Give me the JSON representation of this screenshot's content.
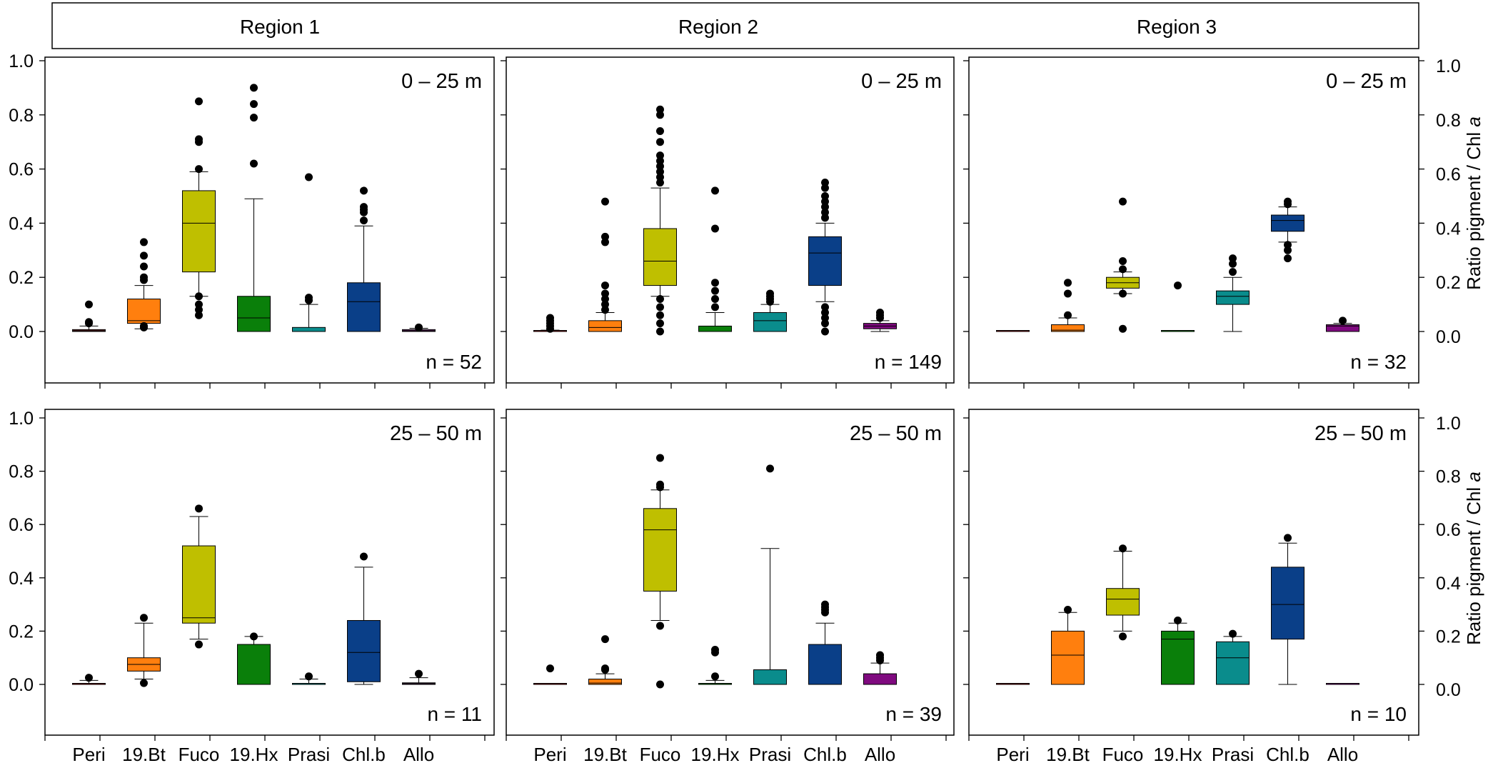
{
  "colors": {
    "Peri": "#8b0f0f",
    "19.Bt": "#ff7f0e",
    "Fuco": "#bfbf00",
    "19.Hx": "#0a7f0a",
    "Prasi": "#0a8c8c",
    "Chl.b": "#0a3f88",
    "Allo": "#7f0a7f",
    "outlier": "#000000"
  },
  "chart_data": {
    "type": "box",
    "title": "",
    "regions": [
      "Region 1",
      "Region 2",
      "Region 3"
    ],
    "depths": [
      "0 – 25 m",
      "25 – 50 m"
    ],
    "categories": [
      "Peri",
      "19.Bt",
      "Fuco",
      "19.Hx",
      "Prasi",
      "Chl.b",
      "Allo"
    ],
    "y_ticks": [
      "0.0",
      "0.2",
      "0.4",
      "0.6",
      "0.8",
      "1.0"
    ],
    "ylim": [
      -0.15,
      1.0
    ],
    "right_ylabel_prefix": "Ratio pigment / Chl ",
    "right_ylabel_italic": "a",
    "panels": [
      {
        "region": "Region 1",
        "depth": "0 – 25 m",
        "n_label": "n = 52",
        "boxes": [
          {
            "cat": "Peri",
            "min": 0.0,
            "q1": 0.0,
            "median": 0.003,
            "q3": 0.007,
            "max": 0.02,
            "outliers": [
              0.03,
              0.035,
              0.1
            ]
          },
          {
            "cat": "19.Bt",
            "min": 0.01,
            "q1": 0.03,
            "median": 0.04,
            "q3": 0.12,
            "max": 0.17,
            "outliers": [
              0.015,
              0.02,
              0.19,
              0.2,
              0.24,
              0.28,
              0.33
            ]
          },
          {
            "cat": "Fuco",
            "min": 0.13,
            "q1": 0.22,
            "median": 0.4,
            "q3": 0.52,
            "max": 0.59,
            "outliers": [
              0.06,
              0.08,
              0.1,
              0.13,
              0.6,
              0.7,
              0.71,
              0.85
            ]
          },
          {
            "cat": "19.Hx",
            "min": 0.0,
            "q1": 0.0,
            "median": 0.05,
            "q3": 0.13,
            "max": 0.49,
            "outliers": [
              0.62,
              0.79,
              0.84,
              0.9
            ]
          },
          {
            "cat": "Prasi",
            "min": 0.0,
            "q1": 0.0,
            "median": 0.0,
            "q3": 0.015,
            "max": 0.1,
            "outliers": [
              0.115,
              0.125,
              0.57
            ]
          },
          {
            "cat": "Chl.b",
            "min": 0.0,
            "q1": 0.0,
            "median": 0.11,
            "q3": 0.18,
            "max": 0.39,
            "outliers": [
              0.41,
              0.44,
              0.45,
              0.46,
              0.52
            ]
          },
          {
            "cat": "Allo",
            "min": 0.0,
            "q1": 0.0,
            "median": 0.003,
            "q3": 0.007,
            "max": 0.012,
            "outliers": [
              0.015
            ]
          }
        ]
      },
      {
        "region": "Region 2",
        "depth": "0 – 25 m",
        "n_label": "n = 149",
        "boxes": [
          {
            "cat": "Peri",
            "min": 0.0,
            "q1": 0.0,
            "median": 0.0,
            "q3": 0.0,
            "max": 0.005,
            "outliers": [
              0.01,
              0.02,
              0.03,
              0.04,
              0.05
            ]
          },
          {
            "cat": "19.Bt",
            "min": 0.0,
            "q1": 0.0,
            "median": 0.015,
            "q3": 0.04,
            "max": 0.07,
            "outliers": [
              0.08,
              0.1,
              0.12,
              0.14,
              0.17,
              0.33,
              0.35,
              0.48
            ]
          },
          {
            "cat": "Fuco",
            "min": 0.13,
            "q1": 0.17,
            "median": 0.26,
            "q3": 0.38,
            "max": 0.53,
            "outliers": [
              0.0,
              0.03,
              0.06,
              0.09,
              0.12,
              0.55,
              0.57,
              0.59,
              0.61,
              0.63,
              0.65,
              0.7,
              0.74,
              0.8,
              0.82
            ]
          },
          {
            "cat": "19.Hx",
            "min": 0.0,
            "q1": 0.0,
            "median": 0.0,
            "q3": 0.02,
            "max": 0.07,
            "outliers": [
              0.09,
              0.12,
              0.15,
              0.18,
              0.38,
              0.52
            ]
          },
          {
            "cat": "Prasi",
            "min": 0.0,
            "q1": 0.0,
            "median": 0.04,
            "q3": 0.07,
            "max": 0.1,
            "outliers": [
              0.11,
              0.12,
              0.13,
              0.14
            ]
          },
          {
            "cat": "Chl.b",
            "min": 0.11,
            "q1": 0.17,
            "median": 0.29,
            "q3": 0.35,
            "max": 0.4,
            "outliers": [
              0.0,
              0.03,
              0.05,
              0.07,
              0.09,
              0.42,
              0.44,
              0.46,
              0.48,
              0.5,
              0.53,
              0.55
            ]
          },
          {
            "cat": "Allo",
            "min": 0.0,
            "q1": 0.01,
            "median": 0.02,
            "q3": 0.03,
            "max": 0.04,
            "outliers": [
              0.05,
              0.06,
              0.07
            ]
          }
        ]
      },
      {
        "region": "Region 3",
        "depth": "0 – 25 m",
        "n_label": "n = 32",
        "boxes": [
          {
            "cat": "Peri",
            "min": 0.0,
            "q1": 0.0,
            "median": 0.0,
            "q3": 0.0,
            "max": 0.0,
            "outliers": []
          },
          {
            "cat": "19.Bt",
            "min": 0.0,
            "q1": 0.0,
            "median": 0.005,
            "q3": 0.025,
            "max": 0.05,
            "outliers": [
              0.06,
              0.14,
              0.18
            ]
          },
          {
            "cat": "Fuco",
            "min": 0.14,
            "q1": 0.16,
            "median": 0.18,
            "q3": 0.2,
            "max": 0.22,
            "outliers": [
              0.01,
              0.14,
              0.23,
              0.26,
              0.48
            ]
          },
          {
            "cat": "19.Hx",
            "min": 0.0,
            "q1": 0.0,
            "median": 0.0,
            "q3": 0.0,
            "max": 0.0,
            "outliers": [
              0.17
            ]
          },
          {
            "cat": "Prasi",
            "min": 0.0,
            "q1": 0.1,
            "median": 0.13,
            "q3": 0.15,
            "max": 0.2,
            "outliers": [
              0.22,
              0.25,
              0.27
            ]
          },
          {
            "cat": "Chl.b",
            "min": 0.33,
            "q1": 0.37,
            "median": 0.41,
            "q3": 0.43,
            "max": 0.46,
            "outliers": [
              0.27,
              0.3,
              0.32,
              0.47,
              0.48
            ]
          },
          {
            "cat": "Allo",
            "min": 0.0,
            "q1": 0.0,
            "median": 0.02,
            "q3": 0.025,
            "max": 0.03,
            "outliers": [
              0.04
            ]
          }
        ]
      },
      {
        "region": "Region 1",
        "depth": "25 – 50 m",
        "n_label": "n = 11",
        "boxes": [
          {
            "cat": "Peri",
            "min": 0.0,
            "q1": 0.0,
            "median": 0.0,
            "q3": 0.0,
            "max": 0.015,
            "outliers": [
              0.025
            ]
          },
          {
            "cat": "19.Bt",
            "min": 0.02,
            "q1": 0.05,
            "median": 0.075,
            "q3": 0.1,
            "max": 0.23,
            "outliers": [
              0.005,
              0.25
            ]
          },
          {
            "cat": "Fuco",
            "min": 0.17,
            "q1": 0.23,
            "median": 0.25,
            "q3": 0.52,
            "max": 0.63,
            "outliers": [
              0.15,
              0.66
            ]
          },
          {
            "cat": "19.Hx",
            "min": 0.0,
            "q1": 0.0,
            "median": 0.15,
            "q3": 0.15,
            "max": 0.18,
            "outliers": [
              0.18
            ]
          },
          {
            "cat": "Prasi",
            "min": 0.0,
            "q1": 0.0,
            "median": 0.0,
            "q3": 0.0,
            "max": 0.02,
            "outliers": [
              0.03
            ]
          },
          {
            "cat": "Chl.b",
            "min": 0.0,
            "q1": 0.01,
            "median": 0.12,
            "q3": 0.24,
            "max": 0.44,
            "outliers": [
              0.48
            ]
          },
          {
            "cat": "Allo",
            "min": 0.0,
            "q1": 0.0,
            "median": 0.003,
            "q3": 0.006,
            "max": 0.025,
            "outliers": [
              0.04
            ]
          }
        ]
      },
      {
        "region": "Region 2",
        "depth": "25 – 50 m",
        "n_label": "n = 39",
        "boxes": [
          {
            "cat": "Peri",
            "min": 0.0,
            "q1": 0.0,
            "median": 0.0,
            "q3": 0.0,
            "max": 0.0,
            "outliers": [
              0.06
            ]
          },
          {
            "cat": "19.Bt",
            "min": 0.0,
            "q1": 0.0,
            "median": 0.005,
            "q3": 0.02,
            "max": 0.04,
            "outliers": [
              0.055,
              0.06,
              0.17
            ]
          },
          {
            "cat": "Fuco",
            "min": 0.24,
            "q1": 0.35,
            "median": 0.58,
            "q3": 0.66,
            "max": 0.73,
            "outliers": [
              0.0,
              0.22,
              0.74,
              0.75,
              0.85
            ]
          },
          {
            "cat": "19.Hx",
            "min": 0.0,
            "q1": 0.0,
            "median": 0.0,
            "q3": 0.0,
            "max": 0.015,
            "outliers": [
              0.03,
              0.12,
              0.13
            ]
          },
          {
            "cat": "Prasi",
            "min": 0.0,
            "q1": 0.0,
            "median": 0.0,
            "q3": 0.055,
            "max": 0.51,
            "outliers": [
              0.81
            ]
          },
          {
            "cat": "Chl.b",
            "min": 0.0,
            "q1": 0.0,
            "median": 0.0,
            "q3": 0.15,
            "max": 0.23,
            "outliers": [
              0.27,
              0.28,
              0.29,
              0.3
            ]
          },
          {
            "cat": "Allo",
            "min": 0.0,
            "q1": 0.0,
            "median": 0.0,
            "q3": 0.04,
            "max": 0.08,
            "outliers": [
              0.09,
              0.1,
              0.11
            ]
          }
        ]
      },
      {
        "region": "Region 3",
        "depth": "25 – 50 m",
        "n_label": "n = 10",
        "boxes": [
          {
            "cat": "Peri",
            "min": 0.0,
            "q1": 0.0,
            "median": 0.0,
            "q3": 0.0,
            "max": 0.0,
            "outliers": []
          },
          {
            "cat": "19.Bt",
            "min": 0.0,
            "q1": 0.0,
            "median": 0.11,
            "q3": 0.2,
            "max": 0.27,
            "outliers": [
              0.28
            ]
          },
          {
            "cat": "Fuco",
            "min": 0.2,
            "q1": 0.26,
            "median": 0.32,
            "q3": 0.36,
            "max": 0.5,
            "outliers": [
              0.18,
              0.51
            ]
          },
          {
            "cat": "19.Hx",
            "min": 0.0,
            "q1": 0.0,
            "median": 0.17,
            "q3": 0.2,
            "max": 0.23,
            "outliers": [
              0.24
            ]
          },
          {
            "cat": "Prasi",
            "min": 0.0,
            "q1": 0.0,
            "median": 0.1,
            "q3": 0.16,
            "max": 0.18,
            "outliers": [
              0.19
            ]
          },
          {
            "cat": "Chl.b",
            "min": 0.0,
            "q1": 0.17,
            "median": 0.3,
            "q3": 0.44,
            "max": 0.53,
            "outliers": [
              0.55
            ]
          },
          {
            "cat": "Allo",
            "min": 0.0,
            "q1": 0.0,
            "median": 0.0,
            "q3": 0.0,
            "max": 0.0,
            "outliers": []
          }
        ]
      }
    ]
  }
}
